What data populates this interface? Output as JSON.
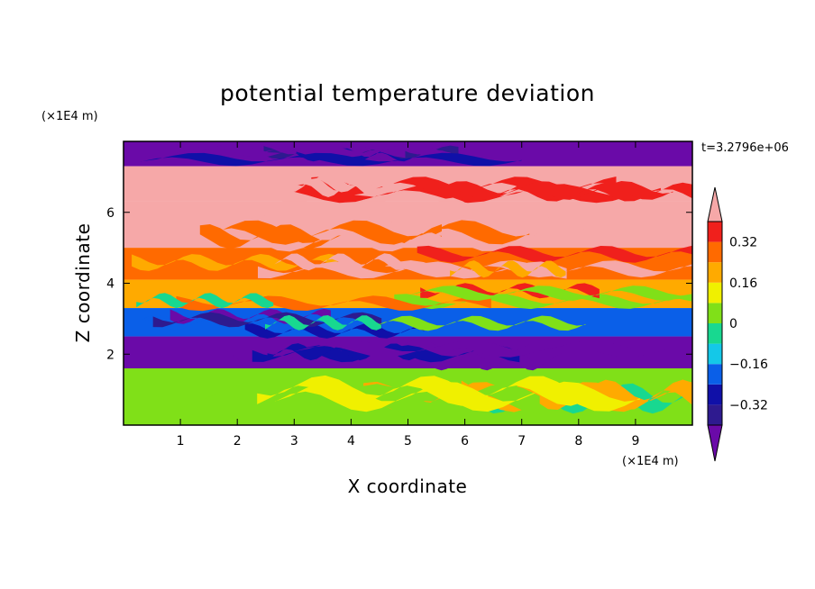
{
  "chart_data": {
    "type": "heatmap",
    "title": "potential temperature deviation",
    "xlabel": "X coordinate",
    "ylabel": "Z coordinate",
    "x_unit": "(×1E4 m)",
    "y_unit": "(×1E4 m)",
    "time_label": "t=3.2796e+06",
    "xlim": [
      0,
      10
    ],
    "ylim": [
      0,
      8
    ],
    "x_ticks": [
      "1",
      "2",
      "3",
      "4",
      "5",
      "6",
      "7",
      "8",
      "9"
    ],
    "y_ticks": [
      "2",
      "4",
      "6"
    ],
    "colorbar": {
      "levels": [
        -0.4,
        -0.32,
        -0.24,
        -0.16,
        -0.08,
        0,
        0.08,
        0.16,
        0.24,
        0.32,
        0.4
      ],
      "tick_labels": [
        "0.32",
        "0.16",
        "0",
        "−0.16",
        "−0.32"
      ],
      "tick_values": [
        0.32,
        0.16,
        0,
        -0.16,
        -0.32
      ],
      "colors": [
        "#2e1a8f",
        "#1010a8",
        "#0a5fe8",
        "#14c8e8",
        "#18d890",
        "#80e018",
        "#f0f000",
        "#ffaa00",
        "#ff6a00",
        "#f0201c"
      ],
      "under_color": "#6a0aa8",
      "over_color": "#f6a8a8"
    },
    "bands": [
      {
        "z": [
          7.3,
          8.0
        ],
        "value": -0.5
      },
      {
        "z": [
          6.3,
          7.3
        ],
        "value": 0.5
      },
      {
        "z": [
          5.0,
          6.3
        ],
        "value": 0.5
      },
      {
        "z": [
          4.1,
          5.0
        ],
        "value": 0.3
      },
      {
        "z": [
          3.3,
          4.1
        ],
        "value": 0.18
      },
      {
        "z": [
          2.5,
          3.3
        ],
        "value": -0.2
      },
      {
        "z": [
          1.6,
          2.5
        ],
        "value": -0.5
      },
      {
        "z": [
          0.0,
          1.6
        ],
        "value": 0.0
      }
    ]
  }
}
